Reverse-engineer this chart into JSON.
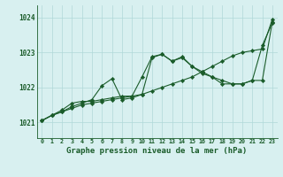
{
  "background_color": "#d8f0f0",
  "grid_color": "#b0d8d8",
  "line_color": "#1a5c2a",
  "marker_color": "#1a5c2a",
  "xlabel": "Graphe pression niveau de la mer (hPa)",
  "xlabel_fontsize": 6.5,
  "ylabel_ticks": [
    1021,
    1022,
    1023,
    1024
  ],
  "xlim": [
    -0.5,
    23.5
  ],
  "ylim": [
    1020.55,
    1024.35
  ],
  "hours": [
    0,
    1,
    2,
    3,
    4,
    5,
    6,
    7,
    8,
    9,
    10,
    11,
    12,
    13,
    14,
    15,
    16,
    17,
    18,
    19,
    20,
    21,
    22,
    23
  ],
  "series1": [
    1021.05,
    1021.2,
    1021.3,
    1021.4,
    1021.5,
    1021.55,
    1021.6,
    1021.65,
    1021.7,
    1021.75,
    1021.8,
    1021.9,
    1022.0,
    1022.1,
    1022.2,
    1022.3,
    1022.45,
    1022.6,
    1022.75,
    1022.9,
    1023.0,
    1023.05,
    1023.1,
    1023.95
  ],
  "series2": [
    1021.05,
    1021.2,
    1021.3,
    1021.45,
    1021.55,
    1021.65,
    1022.05,
    1022.25,
    1021.65,
    1021.7,
    1021.8,
    1022.85,
    1022.95,
    1022.75,
    1022.85,
    1022.6,
    1022.4,
    1022.3,
    1022.1,
    1022.1,
    1022.1,
    1022.2,
    1023.2,
    1023.85
  ],
  "series3": [
    1021.05,
    1021.2,
    1021.35,
    1021.55,
    1021.6,
    1021.6,
    1021.65,
    1021.7,
    1021.75,
    1021.75,
    1022.3,
    1022.88,
    1022.95,
    1022.75,
    1022.88,
    1022.6,
    1022.45,
    1022.3,
    1022.2,
    1022.1,
    1022.1,
    1022.2,
    1022.2,
    1023.88
  ]
}
